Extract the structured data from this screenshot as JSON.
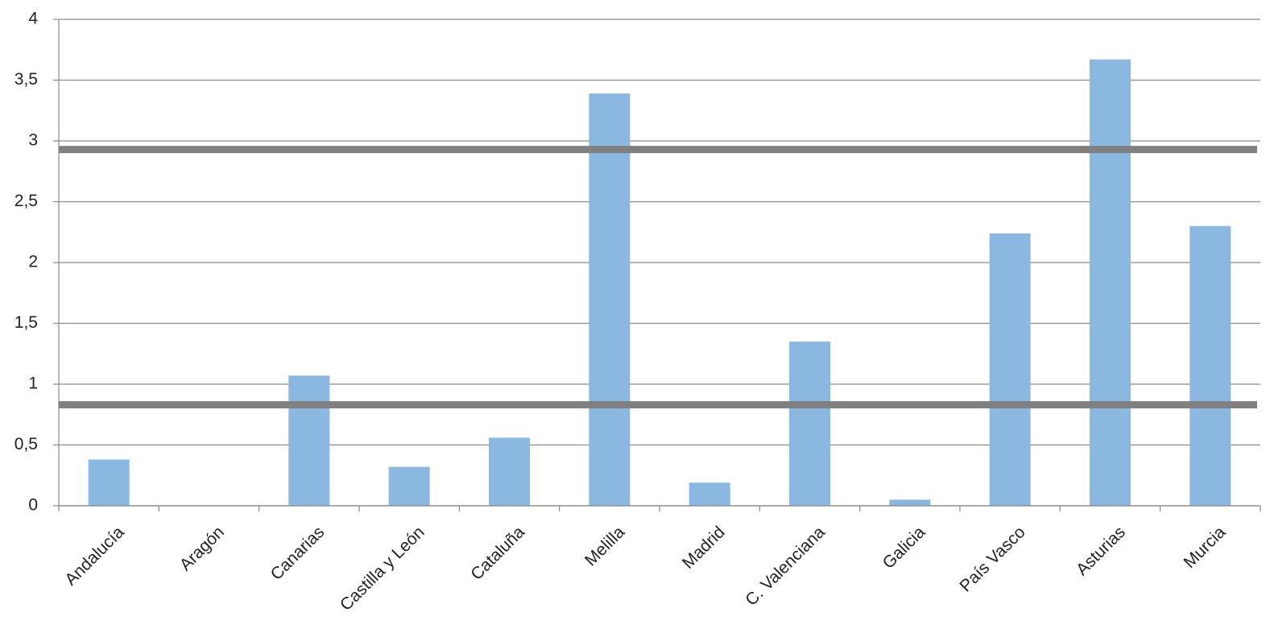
{
  "chart_data": {
    "type": "bar",
    "categories": [
      "Andalucía",
      "Aragón",
      "Canarias",
      "Castilla y León",
      "Cataluña",
      "Melilla",
      "Madrid",
      "C. Valenciana",
      "Galicia",
      "País Vasco",
      "Asturias",
      "Murcia"
    ],
    "values": [
      0.38,
      0,
      1.07,
      0.32,
      0.56,
      3.39,
      0.19,
      1.35,
      0.05,
      2.24,
      3.67,
      2.3
    ],
    "color": "#8ab8e0",
    "ylim": [
      0,
      4
    ],
    "yticks": [
      0,
      {
        "value": 0.5,
        "label": "0,5"
      },
      1,
      {
        "value": 1.5,
        "label": "1,5"
      },
      2,
      {
        "value": 2.5,
        "label": "2,5"
      },
      3,
      {
        "value": 3.5,
        "label": "3,5"
      },
      4
    ],
    "grid": true,
    "reference_lines": {
      "values": [
        2.93,
        0.83
      ],
      "color": "#808080"
    }
  }
}
